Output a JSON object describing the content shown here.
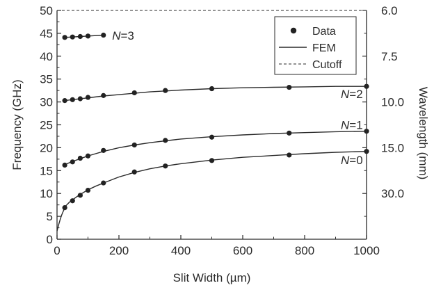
{
  "chart_data": {
    "type": "scatter",
    "title": "",
    "xlabel": "Slit Width (µm)",
    "ylabel": "Frequency (GHz)",
    "y2label": "Wavelength (mm)",
    "xlim": [
      0,
      1000
    ],
    "ylim": [
      0,
      50
    ],
    "x_ticks": [
      "0",
      "200",
      "400",
      "600",
      "800",
      "1000"
    ],
    "y_ticks": [
      "0",
      "5",
      "10",
      "15",
      "20",
      "25",
      "30",
      "35",
      "40",
      "45",
      "50"
    ],
    "y2_ticks": [
      {
        "label": "6.0",
        "freq": 50
      },
      {
        "label": "7.5",
        "freq": 40
      },
      {
        "label": "10.0",
        "freq": 30
      },
      {
        "label": "15.0",
        "freq": 20
      },
      {
        "label": "30.0",
        "freq": 10
      }
    ],
    "y2_minor_freqs": [
      45,
      35,
      25,
      15,
      5
    ],
    "grid": false,
    "legend": {
      "placement": "top-right",
      "entries": [
        {
          "label": "Data",
          "style": "marker"
        },
        {
          "label": "FEM",
          "style": "solid"
        },
        {
          "label": "Cutoff",
          "style": "dashed"
        }
      ]
    },
    "cutoff": 50,
    "series": [
      {
        "name": "N=0",
        "label_text": {
          "italic": "N",
          "rest": "=0"
        },
        "label_at": [
          988,
          17.3
        ],
        "x": [
          25,
          50,
          75,
          100,
          150,
          250,
          350,
          500,
          750,
          1000
        ],
        "y": [
          6.9,
          8.4,
          9.6,
          10.7,
          12.3,
          14.7,
          16.0,
          17.2,
          18.4,
          19.2
        ],
        "fem_x": [
          0,
          5,
          10,
          15,
          20,
          25,
          30,
          40,
          50,
          60,
          75,
          90,
          100,
          125,
          150,
          200,
          250,
          300,
          350,
          400,
          500,
          600,
          700,
          800,
          900,
          1000
        ],
        "fem_y": [
          1.8,
          3.1,
          4.3,
          5.3,
          6.1,
          6.9,
          7.4,
          8.1,
          8.6,
          9.1,
          9.8,
          10.4,
          10.8,
          11.6,
          12.3,
          13.6,
          14.6,
          15.4,
          16.0,
          16.5,
          17.3,
          17.9,
          18.3,
          18.7,
          19.0,
          19.2
        ]
      },
      {
        "name": "N=1",
        "label_text": {
          "italic": "N",
          "rest": "=1"
        },
        "label_at": [
          988,
          25.0
        ],
        "x": [
          25,
          50,
          75,
          100,
          150,
          250,
          350,
          500,
          750,
          1000
        ],
        "y": [
          16.2,
          16.9,
          17.7,
          18.2,
          19.4,
          20.6,
          21.6,
          22.3,
          23.2,
          23.6
        ],
        "fem_x": [
          25,
          50,
          75,
          100,
          150,
          200,
          250,
          300,
          350,
          400,
          500,
          600,
          700,
          800,
          900,
          1000
        ],
        "fem_y": [
          16.3,
          17.0,
          17.6,
          18.2,
          19.2,
          20.0,
          20.6,
          21.1,
          21.5,
          21.9,
          22.4,
          22.8,
          23.1,
          23.3,
          23.5,
          23.6
        ]
      },
      {
        "name": "N=2",
        "label_text": {
          "italic": "N",
          "rest": "=2"
        },
        "label_at": [
          988,
          31.8
        ],
        "x": [
          25,
          50,
          75,
          100,
          150,
          250,
          350,
          500,
          750,
          1000
        ],
        "y": [
          30.3,
          30.5,
          30.7,
          31.0,
          31.4,
          32.0,
          32.5,
          32.9,
          33.2,
          33.4
        ],
        "fem_x": [
          25,
          50,
          75,
          100,
          150,
          200,
          250,
          300,
          350,
          400,
          500,
          600,
          700,
          800,
          900,
          1000
        ],
        "fem_y": [
          30.3,
          30.5,
          30.7,
          30.9,
          31.3,
          31.6,
          31.9,
          32.2,
          32.4,
          32.6,
          32.9,
          33.1,
          33.2,
          33.3,
          33.4,
          33.4
        ]
      },
      {
        "name": "N=3",
        "label_text": {
          "italic": "N",
          "rest": "=3"
        },
        "label_at": [
          178,
          44.5
        ],
        "x": [
          25,
          50,
          75,
          100,
          150
        ],
        "y": [
          44.1,
          44.2,
          44.3,
          44.4,
          44.6
        ],
        "fem_x": [
          25,
          50,
          75,
          100,
          150
        ],
        "fem_y": [
          44.1,
          44.2,
          44.3,
          44.4,
          44.6
        ]
      }
    ]
  }
}
